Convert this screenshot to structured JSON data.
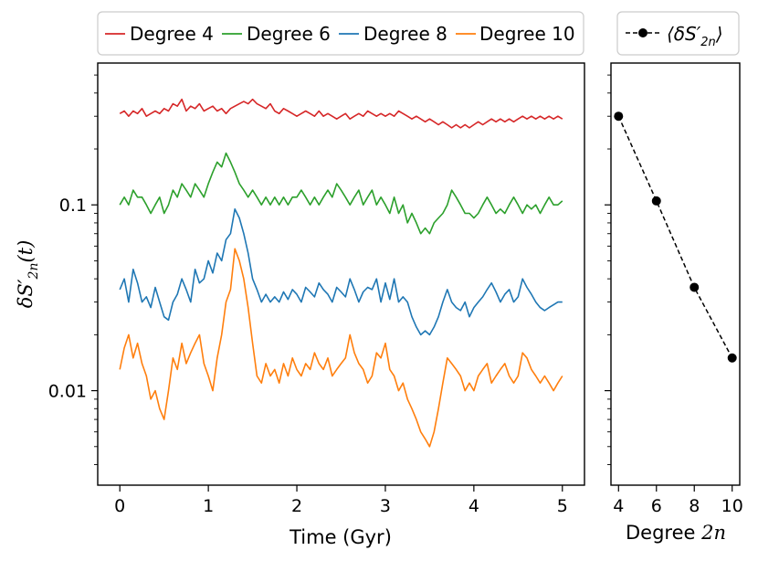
{
  "chart_data": [
    {
      "type": "line",
      "xlabel": "Time (Gyr)",
      "ylabel": "δS′2n(t)",
      "ylabel_main": "δS′",
      "ylabel_sub": "2n",
      "ylabel_tail": "(t)",
      "yscale": "log",
      "xlim": [
        -0.25,
        5.25
      ],
      "ylim": [
        0.0031,
        0.58
      ],
      "x_ticks": [
        0,
        1,
        2,
        3,
        4,
        5
      ],
      "x_tick_labels": [
        "0",
        "1",
        "2",
        "3",
        "4",
        "5"
      ],
      "y_ticks": [
        0.1,
        0.01
      ],
      "y_tick_labels": [
        "0.1",
        "0.01"
      ],
      "legend_position": "top, above plot",
      "t_start": 0,
      "t_end": 5,
      "series": [
        {
          "name": "Degree 4",
          "color": "#d62728",
          "values": [
            0.31,
            0.32,
            0.3,
            0.32,
            0.31,
            0.33,
            0.3,
            0.31,
            0.32,
            0.31,
            0.33,
            0.32,
            0.35,
            0.34,
            0.37,
            0.32,
            0.34,
            0.33,
            0.35,
            0.32,
            0.33,
            0.34,
            0.32,
            0.33,
            0.31,
            0.33,
            0.34,
            0.35,
            0.36,
            0.35,
            0.37,
            0.35,
            0.34,
            0.33,
            0.35,
            0.32,
            0.31,
            0.33,
            0.32,
            0.31,
            0.3,
            0.31,
            0.32,
            0.31,
            0.3,
            0.32,
            0.3,
            0.31,
            0.3,
            0.29,
            0.3,
            0.31,
            0.29,
            0.3,
            0.31,
            0.3,
            0.32,
            0.31,
            0.3,
            0.31,
            0.3,
            0.31,
            0.3,
            0.32,
            0.31,
            0.3,
            0.29,
            0.3,
            0.29,
            0.28,
            0.29,
            0.28,
            0.27,
            0.28,
            0.27,
            0.26,
            0.27,
            0.26,
            0.27,
            0.26,
            0.27,
            0.28,
            0.27,
            0.28,
            0.29,
            0.28,
            0.29,
            0.28,
            0.29,
            0.28,
            0.29,
            0.3,
            0.29,
            0.3,
            0.29,
            0.3,
            0.29,
            0.3,
            0.29,
            0.3,
            0.29
          ]
        },
        {
          "name": "Degree 6",
          "color": "#2ca02c",
          "values": [
            0.1,
            0.11,
            0.1,
            0.12,
            0.11,
            0.11,
            0.1,
            0.09,
            0.1,
            0.11,
            0.09,
            0.1,
            0.12,
            0.11,
            0.13,
            0.12,
            0.11,
            0.13,
            0.12,
            0.11,
            0.13,
            0.15,
            0.17,
            0.16,
            0.19,
            0.17,
            0.15,
            0.13,
            0.12,
            0.11,
            0.12,
            0.11,
            0.1,
            0.11,
            0.1,
            0.11,
            0.1,
            0.11,
            0.1,
            0.11,
            0.11,
            0.12,
            0.11,
            0.1,
            0.11,
            0.1,
            0.11,
            0.12,
            0.11,
            0.13,
            0.12,
            0.11,
            0.1,
            0.11,
            0.12,
            0.1,
            0.11,
            0.12,
            0.1,
            0.11,
            0.1,
            0.09,
            0.11,
            0.09,
            0.1,
            0.08,
            0.09,
            0.08,
            0.07,
            0.075,
            0.07,
            0.08,
            0.085,
            0.09,
            0.1,
            0.12,
            0.11,
            0.1,
            0.09,
            0.09,
            0.085,
            0.09,
            0.1,
            0.11,
            0.1,
            0.09,
            0.095,
            0.09,
            0.1,
            0.11,
            0.1,
            0.09,
            0.1,
            0.095,
            0.1,
            0.09,
            0.1,
            0.11,
            0.1,
            0.1,
            0.105
          ]
        },
        {
          "name": "Degree 8",
          "color": "#1f77b4",
          "values": [
            0.035,
            0.04,
            0.03,
            0.045,
            0.038,
            0.03,
            0.032,
            0.028,
            0.036,
            0.03,
            0.025,
            0.024,
            0.03,
            0.033,
            0.04,
            0.035,
            0.03,
            0.045,
            0.038,
            0.04,
            0.05,
            0.043,
            0.055,
            0.05,
            0.065,
            0.07,
            0.095,
            0.085,
            0.07,
            0.055,
            0.04,
            0.035,
            0.03,
            0.033,
            0.03,
            0.032,
            0.03,
            0.034,
            0.031,
            0.035,
            0.033,
            0.03,
            0.036,
            0.034,
            0.032,
            0.038,
            0.035,
            0.033,
            0.03,
            0.036,
            0.034,
            0.032,
            0.04,
            0.035,
            0.03,
            0.034,
            0.036,
            0.035,
            0.04,
            0.03,
            0.038,
            0.031,
            0.04,
            0.03,
            0.032,
            0.03,
            0.025,
            0.022,
            0.02,
            0.021,
            0.02,
            0.022,
            0.025,
            0.03,
            0.035,
            0.03,
            0.028,
            0.027,
            0.03,
            0.025,
            0.028,
            0.03,
            0.032,
            0.035,
            0.038,
            0.034,
            0.03,
            0.033,
            0.035,
            0.03,
            0.032,
            0.04,
            0.036,
            0.033,
            0.03,
            0.028,
            0.027,
            0.028,
            0.029,
            0.03,
            0.03
          ]
        },
        {
          "name": "Degree 10",
          "color": "#ff7f0e",
          "values": [
            0.013,
            0.017,
            0.02,
            0.015,
            0.018,
            0.014,
            0.012,
            0.009,
            0.01,
            0.008,
            0.007,
            0.01,
            0.015,
            0.013,
            0.018,
            0.014,
            0.016,
            0.018,
            0.02,
            0.014,
            0.012,
            0.01,
            0.015,
            0.02,
            0.03,
            0.035,
            0.058,
            0.05,
            0.04,
            0.028,
            0.018,
            0.012,
            0.011,
            0.014,
            0.012,
            0.013,
            0.011,
            0.014,
            0.012,
            0.015,
            0.013,
            0.012,
            0.014,
            0.013,
            0.016,
            0.014,
            0.013,
            0.015,
            0.012,
            0.013,
            0.014,
            0.015,
            0.02,
            0.016,
            0.014,
            0.013,
            0.011,
            0.012,
            0.016,
            0.015,
            0.018,
            0.013,
            0.012,
            0.01,
            0.011,
            0.009,
            0.008,
            0.007,
            0.006,
            0.0055,
            0.005,
            0.006,
            0.008,
            0.011,
            0.015,
            0.014,
            0.013,
            0.012,
            0.01,
            0.011,
            0.01,
            0.012,
            0.013,
            0.014,
            0.011,
            0.012,
            0.013,
            0.014,
            0.012,
            0.011,
            0.012,
            0.016,
            0.015,
            0.013,
            0.012,
            0.011,
            0.012,
            0.011,
            0.01,
            0.011,
            0.012
          ]
        }
      ]
    },
    {
      "type": "line",
      "xlabel": "Degree 2n",
      "xlabel_text": "Degree ",
      "xlabel_math": "2n",
      "yscale": "log",
      "xlim": [
        3.6,
        10.4
      ],
      "ylim": [
        0.0031,
        0.58
      ],
      "x_ticks": [
        4,
        6,
        8,
        10
      ],
      "x_tick_labels": [
        "4",
        "6",
        "8",
        "10"
      ],
      "legend_position": "top, above plot",
      "series": [
        {
          "name": "⟨δS′2n⟩",
          "legend_open": "⟨δS′",
          "legend_sub": "2n",
          "legend_close": "⟩",
          "color": "#000000",
          "style": "dashed, circle markers",
          "x": [
            4,
            6,
            8,
            10
          ],
          "values": [
            0.3,
            0.105,
            0.036,
            0.015
          ]
        }
      ]
    }
  ]
}
